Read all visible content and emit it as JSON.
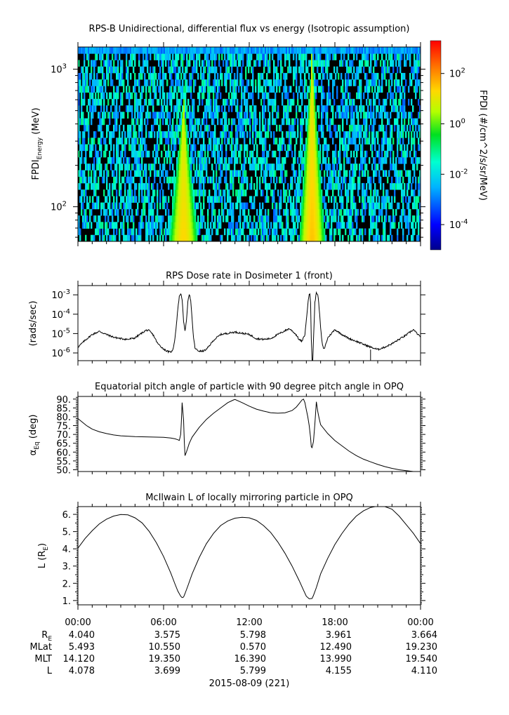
{
  "panels": {
    "spectrogram": {
      "title": "RPS-B  Unidirectional, differential flux vs energy (Isotropic assumption)",
      "ylabel_main": "FPDI",
      "ylabel_sub": "Energy",
      "ylabel_unit": " (MeV)",
      "colorbar_label": "FPDI (#/cm^2/s/sr/MeV)",
      "ytick_labels": [
        "10",
        "10"
      ],
      "ytick_exps": [
        "3",
        "2"
      ],
      "colorbar_tick_labels": [
        "10",
        "10",
        "10",
        "10"
      ],
      "colorbar_tick_exps": [
        "2",
        "0",
        "-2",
        "-4"
      ]
    },
    "dose": {
      "title": "RPS  Dose rate in Dosimeter 1 (front)",
      "ylabel": "(rads/sec)",
      "ytick_labels": [
        "10",
        "10",
        "10",
        "10"
      ],
      "ytick_exps": [
        "-3",
        "-4",
        "-5",
        "-6"
      ]
    },
    "pitch": {
      "title": "Equatorial pitch angle of particle with 90 degree pitch angle in OPQ",
      "ylabel_main": "α",
      "ylabel_sub": "Eq",
      "ylabel_unit": " (deg)",
      "ytick_labels": [
        "90.",
        "85.",
        "80.",
        "75.",
        "70.",
        "65.",
        "60.",
        "55.",
        "50."
      ]
    },
    "lshell": {
      "title": "McIlwain L of locally mirroring particle in OPQ",
      "ylabel_main": "L (R",
      "ylabel_sub": "E",
      "ylabel_end": ")",
      "ytick_labels": [
        "6.",
        "5.",
        "4.",
        "3.",
        "2.",
        "1."
      ]
    }
  },
  "xaxis": {
    "tick_labels": [
      "00:00",
      "06:00",
      "12:00",
      "18:00",
      "00:00"
    ],
    "date_label": "2015-08-09 (221)"
  },
  "ephemeris": {
    "rows": [
      {
        "label": "R",
        "sub": "E",
        "values": [
          "4.040",
          "3.575",
          "5.798",
          "3.961",
          "3.664"
        ]
      },
      {
        "label": "MLat",
        "sub": "",
        "values": [
          "5.493",
          "10.550",
          "0.570",
          "12.490",
          "19.230"
        ]
      },
      {
        "label": "MLT",
        "sub": "",
        "values": [
          "14.120",
          "19.350",
          "16.390",
          "13.990",
          "19.540"
        ]
      },
      {
        "label": "L",
        "sub": "",
        "values": [
          "4.078",
          "3.699",
          "5.799",
          "4.155",
          "4.110"
        ]
      }
    ]
  },
  "chart_data": [
    {
      "type": "heatmap",
      "title": "RPS-B  Unidirectional, differential flux vs energy (Isotropic assumption)",
      "xlabel": "",
      "ylabel": "FPDI Energy (MeV)",
      "x_unit": "hours of day 2015-08-09",
      "xlim": [
        0,
        24
      ],
      "ylim": [
        56,
        1450
      ],
      "y_scale": "log",
      "colorbar": {
        "label": "FPDI (#/cm^2/s/sr/MeV)",
        "scale": "log",
        "range": [
          1e-05,
          2000
        ],
        "colormap": "rainbow (blue→red)"
      },
      "features": [
        {
          "name": "first radiation belt pass",
          "center_hour": 7.4,
          "peak_flux": 20,
          "half_width_hours_at_60MeV": 1.0,
          "top_energy_MeV": 620
        },
        {
          "name": "second radiation belt pass",
          "center_hour": 16.4,
          "peak_flux": 30,
          "half_width_hours_at_60MeV": 0.9,
          "top_energy_MeV": 1300
        }
      ],
      "background_flux": "sparse, ~0.001–0.1"
    },
    {
      "type": "line",
      "title": "RPS  Dose rate in Dosimeter 1 (front)",
      "xlabel": "",
      "ylabel": "(rads/sec)",
      "y_scale": "log",
      "xlim": [
        0,
        24
      ],
      "ylim": [
        4e-07,
        0.003
      ],
      "series": [
        {
          "x": [
            0,
            0.5,
            1,
            1.5,
            2,
            2.5,
            3,
            3.5,
            4,
            4.5,
            4.8,
            5,
            5.3,
            5.5,
            5.6,
            5.8,
            6,
            6.2,
            6.4,
            6.6,
            6.7,
            6.8,
            6.9,
            7.0,
            7.1,
            7.2,
            7.3,
            7.4,
            7.5,
            7.6,
            7.7,
            7.8,
            7.9,
            8.0,
            8.1,
            8.2,
            8.4,
            8.7,
            9,
            9.5,
            10,
            11,
            12,
            12.5,
            13,
            13.5,
            14,
            14.5,
            14.8,
            15.0,
            15.3,
            15.5,
            15.7,
            15.9,
            16.0,
            16.1,
            16.2,
            16.25,
            16.3,
            16.35,
            16.4,
            16.45,
            16.5,
            16.6,
            16.7,
            16.8,
            16.9,
            17.0,
            17.1,
            17.2,
            17.3,
            17.5,
            17.8,
            18,
            18.5,
            19,
            19.5,
            20,
            20.5,
            21,
            21.5,
            22,
            22.5,
            23,
            23.5,
            24
          ],
          "y": [
            2e-06,
            4.5e-06,
            9e-06,
            1.3e-05,
            9e-06,
            6.5e-06,
            5.5e-06,
            5e-06,
            6e-06,
            1.1e-05,
            1.5e-05,
            1.4e-05,
            8e-06,
            4e-06,
            3e-06,
            2.2e-06,
            1.6e-06,
            1.3e-06,
            1.1e-06,
            1.2e-06,
            2.2e-06,
            6e-06,
            3e-05,
            0.0002,
            0.0008,
            0.0012,
            0.0006,
            4e-05,
            1.5e-05,
            4e-05,
            0.0005,
            0.0011,
            0.0005,
            5e-05,
            6e-06,
            1.8e-06,
            1.3e-06,
            1.2e-06,
            1.5e-06,
            4.5e-06,
            9e-06,
            1.2e-05,
            9e-06,
            5.5e-06,
            5e-06,
            5.5e-06,
            9e-06,
            1.4e-05,
            1.8e-05,
            1.4e-05,
            8.5e-06,
            4.8e-06,
            4e-06,
            9e-06,
            5e-05,
            0.0003,
            0.0011,
            0.0012,
            0.0004,
            5e-06,
            4e-07,
            4e-07,
            5e-06,
            0.0004,
            0.0013,
            0.0011,
            0.0002,
            2e-05,
            3.5e-06,
            1.6e-06,
            2e-06,
            6e-06,
            1.1e-05,
            1.6e-05,
            9e-06,
            5.5e-06,
            4e-06,
            2.8e-06,
            2e-06,
            1.5e-06,
            2e-06,
            3e-06,
            5e-06,
            8.5e-06,
            1.6e-05,
            6.5e-06
          ]
        }
      ]
    },
    {
      "type": "line",
      "title": "Equatorial pitch angle of particle with 90 degree pitch angle in OPQ",
      "xlabel": "",
      "ylabel": "αEq (deg)",
      "xlim": [
        0,
        24
      ],
      "ylim": [
        49,
        91.5
      ],
      "series": [
        {
          "x": [
            0,
            0.3,
            0.6,
            1,
            1.5,
            2,
            2.5,
            3,
            4,
            5,
            6,
            6.5,
            6.8,
            7.0,
            7.1,
            7.2,
            7.25,
            7.3,
            7.4,
            7.45,
            7.5,
            7.6,
            7.8,
            8,
            8.5,
            9,
            9.5,
            10,
            10.5,
            10.9,
            11,
            11.5,
            12,
            12.5,
            13,
            13.5,
            14,
            14.5,
            15,
            15.3,
            15.5,
            15.7,
            15.8,
            15.9,
            16.0,
            16.1,
            16.2,
            16.3,
            16.35,
            16.4,
            16.5,
            16.6,
            16.7,
            16.8,
            16.9,
            17,
            17.5,
            18,
            18.5,
            19,
            19.5,
            20,
            20.5,
            21,
            21.5,
            22,
            22.5,
            23,
            23.5,
            24
          ],
          "y": [
            79,
            77,
            75,
            73,
            71.5,
            70.5,
            69.7,
            69.2,
            68.8,
            68.6,
            68.4,
            68,
            67.5,
            67,
            66.6,
            70,
            78,
            88,
            78,
            66,
            58,
            60,
            65,
            68.5,
            74,
            78.5,
            82,
            85,
            88,
            89.5,
            89.8,
            88,
            86,
            84.3,
            83.2,
            82.3,
            82,
            82.2,
            83.5,
            85.5,
            87.5,
            89.5,
            90,
            88,
            84,
            80,
            75,
            68,
            63,
            62.5,
            66,
            76,
            88.5,
            83,
            79,
            75.5,
            70.5,
            66.5,
            63.5,
            60.5,
            58,
            56,
            54.5,
            53,
            51.8,
            50.8,
            50,
            49.5,
            49,
            49
          ]
        }
      ]
    },
    {
      "type": "line",
      "title": "McIlwain L of locally mirroring particle in OPQ",
      "xlabel": "",
      "ylabel": "L (RE)",
      "xlim": [
        0,
        24
      ],
      "ylim": [
        0.75,
        6.45
      ],
      "series": [
        {
          "x": [
            0,
            0.5,
            1,
            1.5,
            2,
            2.5,
            3,
            3.5,
            4,
            4.5,
            5,
            5.5,
            6,
            6.5,
            6.8,
            7,
            7.2,
            7.3,
            7.4,
            7.5,
            7.7,
            8,
            8.5,
            9,
            9.5,
            10,
            10.5,
            11,
            11.5,
            12,
            12.5,
            13,
            13.5,
            14,
            14.5,
            15,
            15.5,
            15.8,
            16,
            16.2,
            16.4,
            16.5,
            16.7,
            17,
            17.5,
            18,
            18.5,
            19,
            19.5,
            20,
            20.5,
            21,
            21.5,
            22,
            22.5,
            23,
            23.5,
            24
          ],
          "y": [
            4.04,
            4.6,
            5.05,
            5.45,
            5.72,
            5.9,
            5.99,
            5.97,
            5.8,
            5.5,
            5.0,
            4.35,
            3.55,
            2.6,
            1.95,
            1.55,
            1.25,
            1.17,
            1.2,
            1.4,
            1.85,
            2.55,
            3.5,
            4.3,
            4.9,
            5.35,
            5.62,
            5.78,
            5.83,
            5.8,
            5.65,
            5.35,
            4.95,
            4.4,
            3.75,
            3.0,
            2.15,
            1.6,
            1.25,
            1.1,
            1.12,
            1.3,
            1.75,
            2.55,
            3.45,
            4.25,
            4.9,
            5.45,
            5.9,
            6.2,
            6.4,
            6.48,
            6.45,
            6.3,
            5.9,
            5.4,
            4.9,
            4.3
          ]
        }
      ]
    }
  ]
}
